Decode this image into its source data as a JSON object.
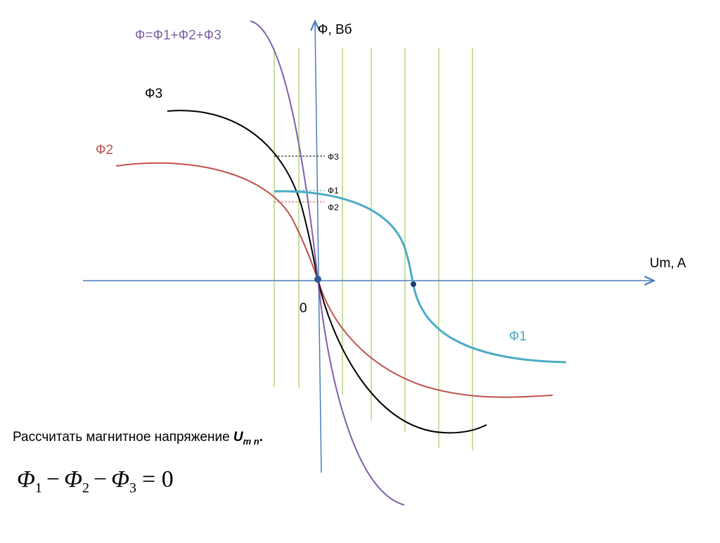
{
  "labels": {
    "sum": "Ф=Ф1+Ф2+Ф3",
    "phi3": "Ф3",
    "phi2": "Ф2",
    "phi1": "Ф1",
    "y_axis": "Ф, Вб",
    "x_axis": "Um, A",
    "origin": "0",
    "small": [
      "Ф3",
      "Ф1",
      "Ф2"
    ]
  },
  "task": {
    "prefix": "Рассчитать магнитное напряжение ",
    "symbol": "U",
    "subscript": "m n",
    "suffix": "."
  },
  "formula": [
    {
      "base": "Φ",
      "sub": "1"
    },
    "−",
    {
      "base": "Φ",
      "sub": "2"
    },
    "−",
    {
      "base": "Φ",
      "sub": "3"
    },
    "= 0"
  ]
}
